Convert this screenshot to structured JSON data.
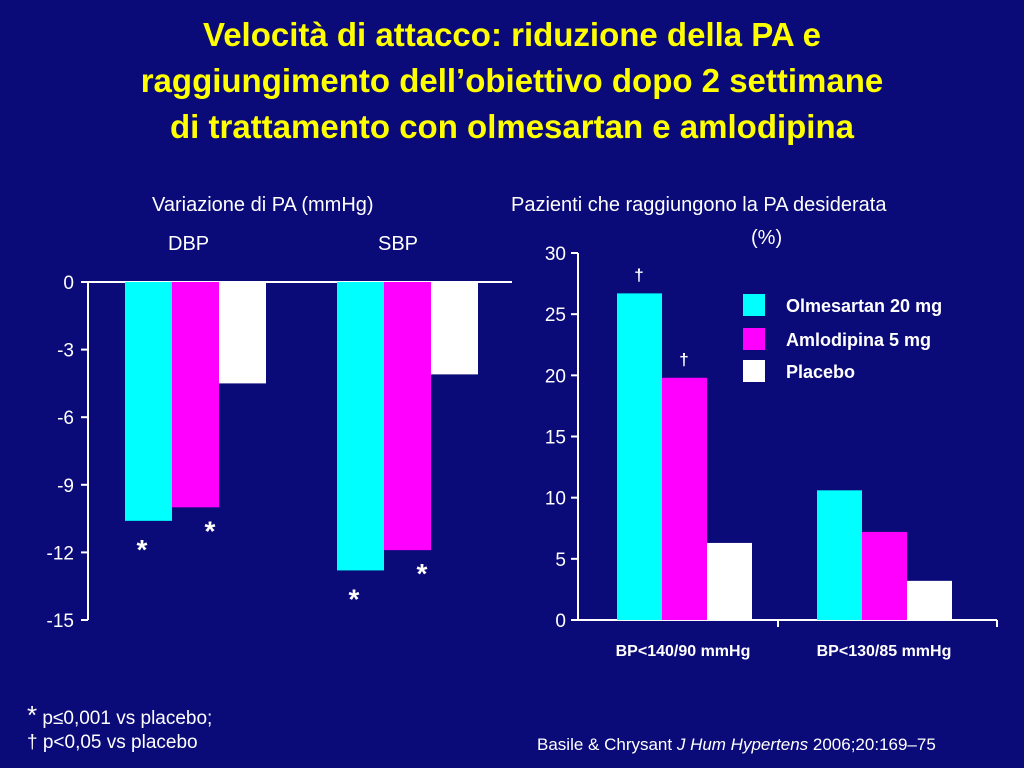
{
  "title": [
    "Velocità di attacco: riduzione della PA e",
    "raggiungimento dell’obiettivo dopo 2 settimane",
    "di trattamento con olmesartan e amlodipina"
  ],
  "colors": {
    "background": "#0a0a78",
    "title": "#ffff00",
    "olmesartan": "#00ffff",
    "amlodipina": "#ff00ff",
    "placebo": "#ffffff"
  },
  "chart_data": [
    {
      "type": "bar",
      "title": "Variazione di PA (mmHg)",
      "categories": [
        "DBP",
        "SBP"
      ],
      "series": [
        {
          "name": "Olmesartan 20 mg",
          "values": [
            -10.6,
            -12.8
          ]
        },
        {
          "name": "Amlodipina 5 mg",
          "values": [
            -10.0,
            -11.9
          ]
        },
        {
          "name": "Placebo",
          "values": [
            -4.5,
            -4.1
          ]
        }
      ],
      "ylim": [
        -15,
        0
      ],
      "yticks": [
        "0",
        "-3",
        "-6",
        "-9",
        "-12",
        "-15"
      ],
      "annotations": [
        {
          "text": "*",
          "category": "DBP",
          "series": "Olmesartan 20 mg"
        },
        {
          "text": "*",
          "category": "DBP",
          "series": "Amlodipina 5 mg"
        },
        {
          "text": "*",
          "category": "SBP",
          "series": "Olmesartan 20 mg"
        },
        {
          "text": "*",
          "category": "SBP",
          "series": "Amlodipina 5 mg"
        }
      ],
      "grid": false
    },
    {
      "type": "bar",
      "title": "Pazienti che raggiungono la PA desiderata",
      "ylabel": "(%)",
      "categories": [
        "BP<140/90 mmHg",
        "BP<130/85 mmHg"
      ],
      "series": [
        {
          "name": "Olmesartan 20 mg",
          "values": [
            26.7,
            10.6
          ]
        },
        {
          "name": "Amlodipina 5 mg",
          "values": [
            19.8,
            7.2
          ]
        },
        {
          "name": "Placebo",
          "values": [
            6.3,
            3.2
          ]
        }
      ],
      "ylim": [
        0,
        30
      ],
      "yticks": [
        "30",
        "25",
        "20",
        "15",
        "10",
        "5",
        "0"
      ],
      "annotations": [
        {
          "text": "†",
          "category": "BP<140/90 mmHg",
          "series": "Olmesartan 20 mg"
        },
        {
          "text": "†",
          "category": "BP<140/90 mmHg",
          "series": "Amlodipina 5 mg"
        }
      ],
      "legend": "top-right",
      "grid": false
    }
  ],
  "footnotes": {
    "star_symbol": "*",
    "star_text": " p≤0,001 vs placebo;",
    "dagger_text": "† p<0,05 vs placebo"
  },
  "citation": {
    "authors": "Basile & Chrysant ",
    "journal": "J Hum Hypertens",
    "details": " 2006;20:169–75"
  }
}
